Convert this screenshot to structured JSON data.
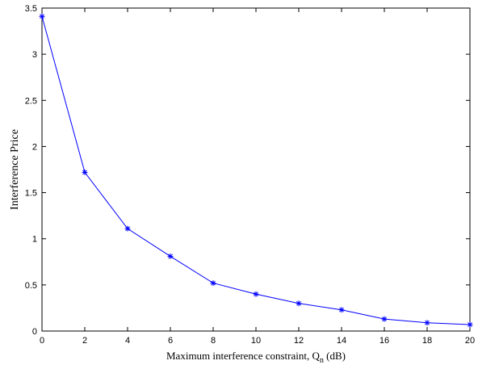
{
  "chart_data": {
    "type": "line",
    "xlabel": "Maximum interference constraint, Q",
    "xlabel_subscript": "n",
    "xlabel_suffix": " (dB)",
    "ylabel": "Interference Price",
    "xlim": [
      0,
      20
    ],
    "ylim": [
      0,
      3.5
    ],
    "x_ticks": [
      0,
      2,
      4,
      6,
      8,
      10,
      12,
      14,
      16,
      18,
      20
    ],
    "x_tick_labels": [
      "0",
      "2",
      "4",
      "6",
      "8",
      "10",
      "12",
      "14",
      "16",
      "18",
      "20"
    ],
    "y_ticks": [
      0,
      0.5,
      1,
      1.5,
      2,
      2.5,
      3,
      3.5
    ],
    "y_tick_labels": [
      "0",
      "0.5",
      "1",
      "1.5",
      "2",
      "2.5",
      "3",
      "3.5"
    ],
    "grid": false,
    "series": [
      {
        "color": "#0000ff",
        "marker": "asterisk",
        "x": [
          0,
          2,
          4,
          6,
          8,
          10,
          12,
          14,
          16,
          18,
          20
        ],
        "y": [
          3.41,
          1.72,
          1.11,
          0.81,
          0.52,
          0.4,
          0.3,
          0.23,
          0.13,
          0.09,
          0.07
        ]
      }
    ]
  }
}
